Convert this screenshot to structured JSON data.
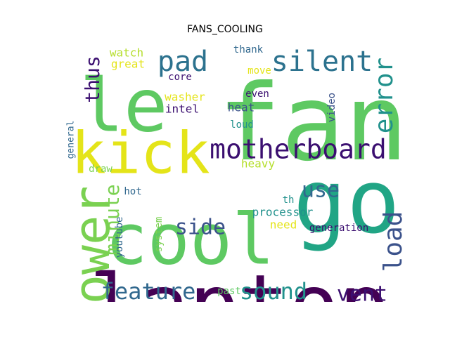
{
  "title": "FANS_COOLING",
  "chart_data": {
    "type": "wordcloud",
    "title": "FANS_COOLING",
    "words": [
      {
        "text": "fan",
        "color": "#5ec962"
      },
      {
        "text": "go",
        "color": "#21a585"
      },
      {
        "text": "laptop",
        "color": "#440154"
      },
      {
        "text": "cool",
        "color": "#5ec962"
      },
      {
        "text": "kick",
        "color": "#e4e419"
      },
      {
        "text": "le",
        "color": "#5ec962"
      },
      {
        "text": "power",
        "color": "#7ad151"
      },
      {
        "text": "motherboard",
        "color": "#3b0f70"
      },
      {
        "text": "silent",
        "color": "#2c728e"
      },
      {
        "text": "pad",
        "color": "#2c728e"
      },
      {
        "text": "error",
        "color": "#21918c"
      },
      {
        "text": "load",
        "color": "#3b528b"
      },
      {
        "text": "feature",
        "color": "#31688e"
      },
      {
        "text": "sound",
        "color": "#21918c"
      },
      {
        "text": "vent",
        "color": "#3b0f70"
      },
      {
        "text": "side",
        "color": "#3b528b"
      },
      {
        "text": "use",
        "color": "#31688e"
      },
      {
        "text": "minute",
        "color": "#7ad151"
      },
      {
        "text": "thus",
        "color": "#3b0f70"
      },
      {
        "text": "processor",
        "color": "#21918c"
      },
      {
        "text": "heavy",
        "color": "#b5de2b"
      },
      {
        "text": "watch",
        "color": "#b5de2b"
      },
      {
        "text": "great",
        "color": "#e4e419"
      },
      {
        "text": "thank",
        "color": "#31688e"
      },
      {
        "text": "move",
        "color": "#e4e419"
      },
      {
        "text": "core",
        "color": "#3b0f70"
      },
      {
        "text": "washer",
        "color": "#e4e419"
      },
      {
        "text": "intel",
        "color": "#3b0f70"
      },
      {
        "text": "even",
        "color": "#3b0f70"
      },
      {
        "text": "heat",
        "color": "#3b528b"
      },
      {
        "text": "loud",
        "color": "#21918c"
      },
      {
        "text": "video",
        "color": "#3b528b"
      },
      {
        "text": "malfunction",
        "color": "#3b528b"
      },
      {
        "text": "general",
        "color": "#31688e"
      },
      {
        "text": "draw",
        "color": "#7ad151"
      },
      {
        "text": "hot",
        "color": "#31688e"
      },
      {
        "text": "youtube",
        "color": "#31688e"
      },
      {
        "text": "system",
        "color": "#7ad151"
      },
      {
        "text": "th",
        "color": "#21918c"
      },
      {
        "text": "need",
        "color": "#e4e419"
      },
      {
        "text": "generation",
        "color": "#3b0f70"
      },
      {
        "text": "past",
        "color": "#5ec962"
      }
    ]
  }
}
